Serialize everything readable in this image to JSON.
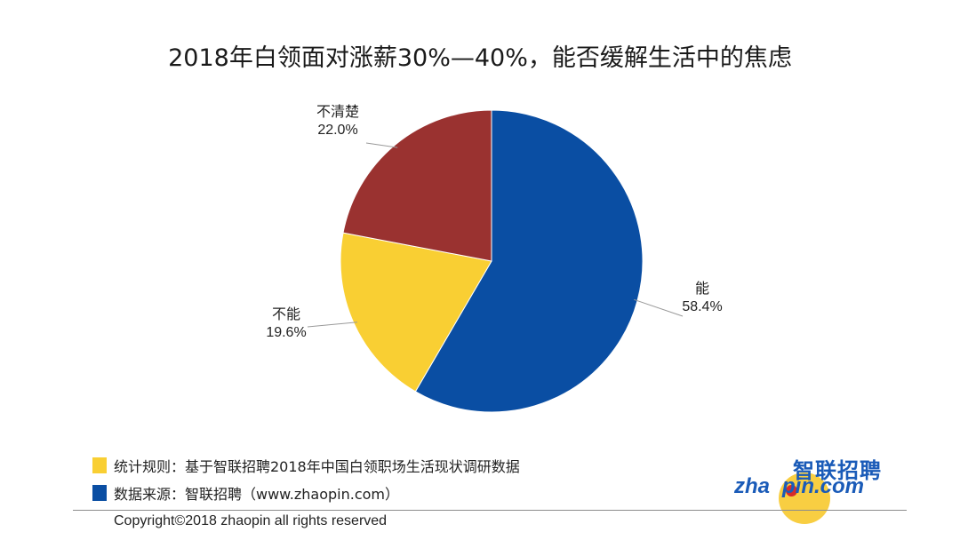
{
  "title": "2018年白领面对涨薪30%—40%，能否缓解生活中的焦虑",
  "chart_data": {
    "type": "pie",
    "title": "2018年白领面对涨薪30%—40%，能否缓解生活中的焦虑",
    "slices": [
      {
        "label": "能",
        "value": 58.4,
        "value_label": "58.4%",
        "color": "#0a4ea3"
      },
      {
        "label": "不能",
        "value": 19.6,
        "value_label": "19.6%",
        "color": "#f9cf33"
      },
      {
        "label": "不清楚",
        "value": 22.0,
        "value_label": "22.0%",
        "color": "#9a3230"
      }
    ],
    "start": "top",
    "direction": "clockwise"
  },
  "legend": {
    "items": [
      {
        "color": "#f9cf33",
        "text": "统计规则：基于智联招聘2018年中国白领职场生活现状调研数据"
      },
      {
        "color": "#0a4ea3",
        "text": "数据来源：智联招聘（www.zhaopin.com）"
      }
    ]
  },
  "logo": {
    "cn": "智联招聘",
    "en_left": "zha",
    "en_right": "pin.com"
  },
  "copyright": "Copyright©2018 zhaopin all rights reserved"
}
